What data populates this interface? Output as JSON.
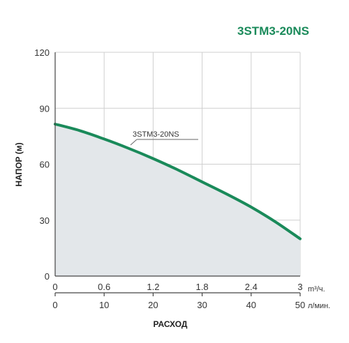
{
  "chart_data": {
    "type": "area",
    "title": "3STM3-20NS",
    "ylabel": "НАПОР (м)",
    "xlabel": "РАСХОД",
    "ylim": [
      0,
      120
    ],
    "y_ticks": [
      "0",
      "30",
      "60",
      "90",
      "120"
    ],
    "x_axis_primary": {
      "unit": "m³/ч.",
      "range": [
        0,
        3
      ],
      "ticks": [
        "0",
        "0.6",
        "1.2",
        "1.8",
        "2.4",
        "3"
      ]
    },
    "x_axis_secondary": {
      "unit": "л/мин.",
      "range": [
        0,
        50
      ],
      "ticks": [
        "0",
        "10",
        "20",
        "30",
        "40",
        "50"
      ]
    },
    "grid": true,
    "series": [
      {
        "name": "3STM3-20NS",
        "x": [
          0,
          0.3,
          0.6,
          0.9,
          1.2,
          1.5,
          1.8,
          2.1,
          2.4,
          2.7,
          3.0
        ],
        "values": [
          81.5,
          78,
          73.5,
          68.5,
          63,
          57,
          50.5,
          44,
          37,
          29,
          20
        ],
        "color": "#1a8a5a",
        "fill": "#e3e7ea"
      }
    ]
  }
}
